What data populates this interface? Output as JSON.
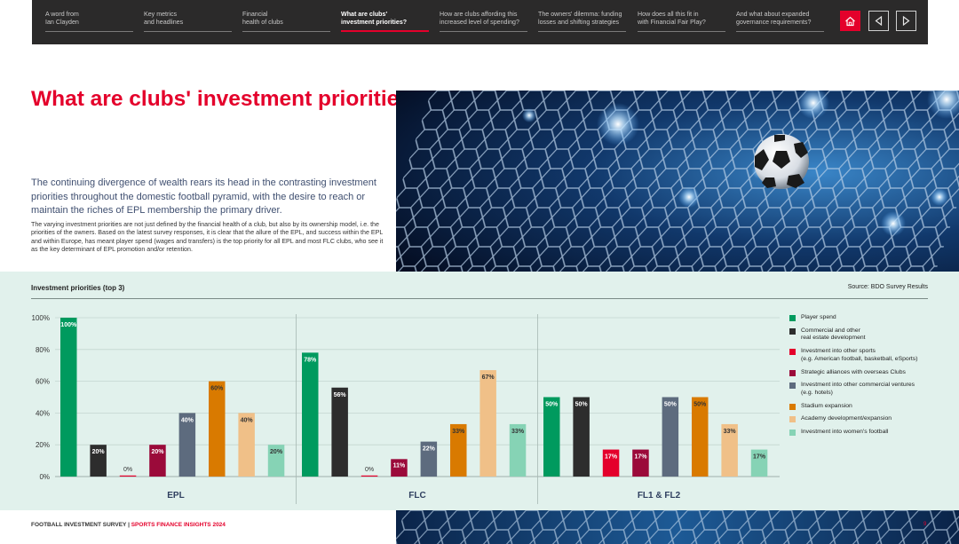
{
  "nav": {
    "items": [
      {
        "label_line1": "A word from",
        "label_line2": "Ian Clayden"
      },
      {
        "label_line1": "Key metrics",
        "label_line2": "and headlines"
      },
      {
        "label_line1": "Financial",
        "label_line2": "health of clubs"
      },
      {
        "label_line1": "What are clubs'",
        "label_line2": "investment priorities?"
      },
      {
        "label_line1": "How are clubs affording this",
        "label_line2": "increased level of spending?"
      },
      {
        "label_line1": "The owners' dilemma: funding",
        "label_line2": "losses and shifting strategies"
      },
      {
        "label_line1": "How does all this fit in",
        "label_line2": "with Financial Fair Play?"
      },
      {
        "label_line1": "And what about expanded",
        "label_line2": "governance requirements?"
      }
    ],
    "active_index": 3,
    "home_icon": "home-icon",
    "prev_icon": "triangle-left-icon",
    "next_icon": "triangle-right-icon"
  },
  "page": {
    "title": "What are clubs' investment priorities?",
    "lead": "The continuing divergence of wealth rears its head in the contrasting investment priorities throughout the domestic football pyramid, with the desire to reach or maintain the riches of EPL membership the primary driver.",
    "body": "The varying investment priorities are not just defined by the financial health of a club, but also by its ownership model, i.e. the priorities of the owners. Based on the latest survey responses, it is clear that the allure of the EPL, and success within the EPL and within Europe, has meant player spend (wages and transfers) is the top priority for all EPL and most FLC clubs, who see it as the key determinant of EPL promotion and/or retention."
  },
  "chart_data": {
    "type": "bar",
    "title": "Investment priorities (top 3)",
    "source": "Source: BDO Survey Results",
    "ylim": [
      0,
      100
    ],
    "yticks": [
      "0%",
      "20%",
      "40%",
      "60%",
      "80%",
      "100%"
    ],
    "ytick_values": [
      0,
      20,
      40,
      60,
      80,
      100
    ],
    "groups": [
      "EPL",
      "FLC",
      "FL1 & FL2"
    ],
    "series": [
      {
        "name": "Player spend",
        "color": "#009a5e",
        "values": [
          100,
          78,
          50
        ]
      },
      {
        "name": "Commercial and other real estate development",
        "color": "#2d2d2d",
        "values": [
          20,
          56,
          50
        ]
      },
      {
        "name": "Investment into other sports (e.g. American football, basketball, eSports)",
        "color": "#e4002b",
        "values": [
          0,
          0,
          17
        ]
      },
      {
        "name": "Strategic alliances with overseas Clubs",
        "color": "#9b0a3a",
        "values": [
          20,
          11,
          17
        ]
      },
      {
        "name": "Investment into other commercial ventures (e.g. hotels)",
        "color": "#5d6b7e",
        "values": [
          40,
          22,
          50
        ]
      },
      {
        "name": "Stadium expansion",
        "color": "#d97a00",
        "values": [
          60,
          33,
          50
        ]
      },
      {
        "name": "Academy development/expansion",
        "color": "#f0c088",
        "values": [
          40,
          67,
          33
        ]
      },
      {
        "name": "Investment into women's football",
        "color": "#86d3b5",
        "values": [
          20,
          33,
          17
        ]
      }
    ],
    "grid": true,
    "legend": "right"
  },
  "legend_lines": [
    [
      "Player spend"
    ],
    [
      "Commercial and other",
      "real estate development"
    ],
    [
      "Investment into other sports",
      "(e.g. American football, basketball, eSports)"
    ],
    [
      "Strategic alliances with overseas Clubs"
    ],
    [
      "Investment into other commercial ventures",
      "(e.g. hotels)"
    ],
    [
      "Stadium expansion"
    ],
    [
      "Academy development/expansion"
    ],
    [
      "Investment into women's football"
    ]
  ],
  "footer": {
    "left": "FOOTBALL INVESTMENT SURVEY",
    "separator": "|",
    "right": "SPORTS FINANCE INSIGHTS 2024",
    "page_number": "9"
  }
}
